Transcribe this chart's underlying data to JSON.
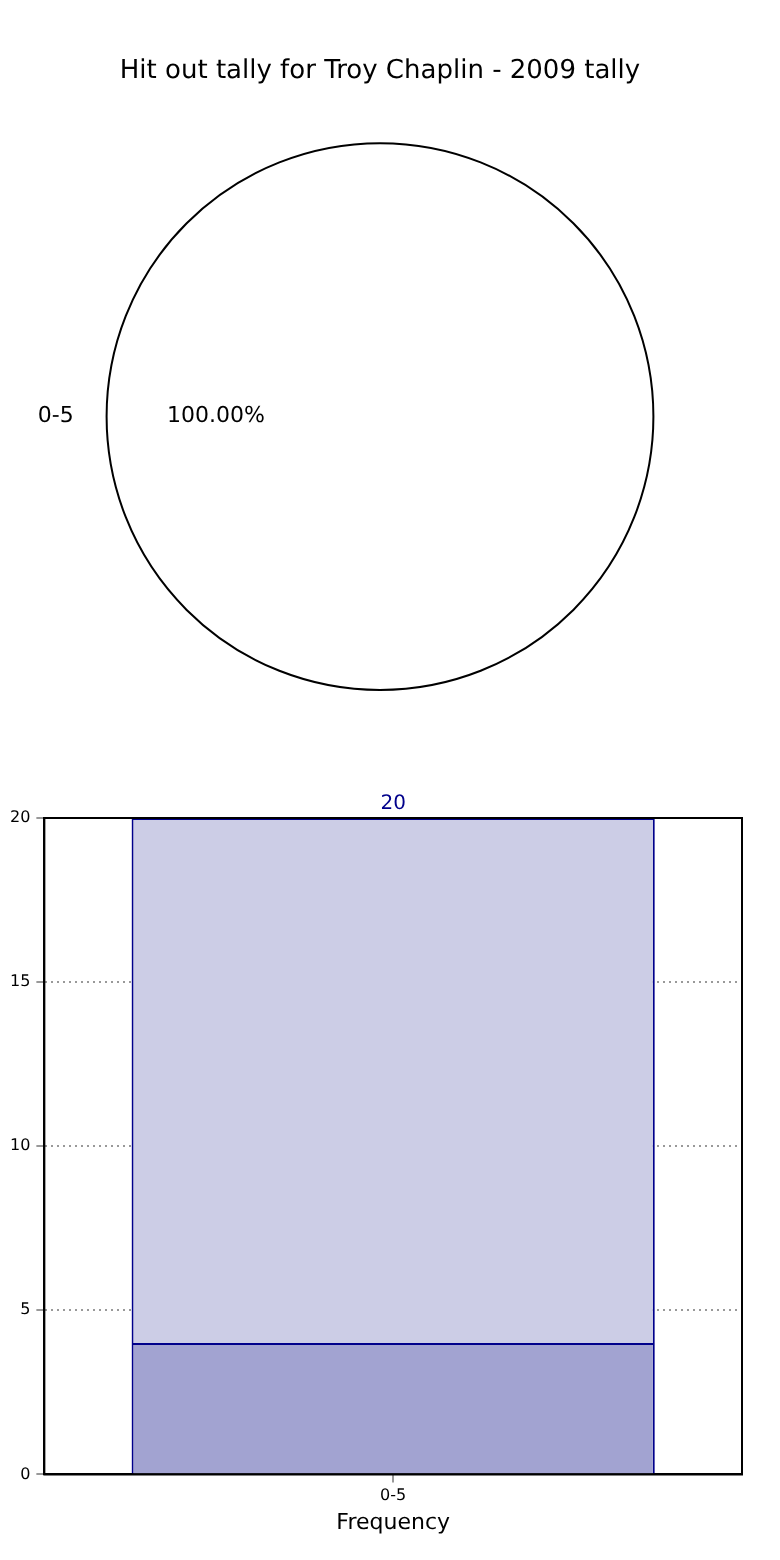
{
  "chart_data": [
    {
      "type": "pie",
      "title": "Hit out tally for Troy Chaplin - 2009 tally",
      "categories": [
        "0-5"
      ],
      "values": [
        100
      ],
      "colors": [
        "#ffffff"
      ],
      "value_labels": [
        "100.00%"
      ],
      "legend": false
    },
    {
      "type": "bar",
      "categories": [
        "0-5"
      ],
      "xlabel": "Frequency",
      "stacked": true,
      "ylim": [
        0,
        20
      ],
      "yticks": [
        0,
        5,
        10,
        15,
        20
      ],
      "grid": true,
      "legend": false,
      "totals": [
        "20"
      ],
      "series": [
        {
          "color": "#a2a3d1",
          "values": [
            4
          ]
        },
        {
          "color": "#cccde6",
          "values": [
            16
          ]
        }
      ]
    }
  ]
}
